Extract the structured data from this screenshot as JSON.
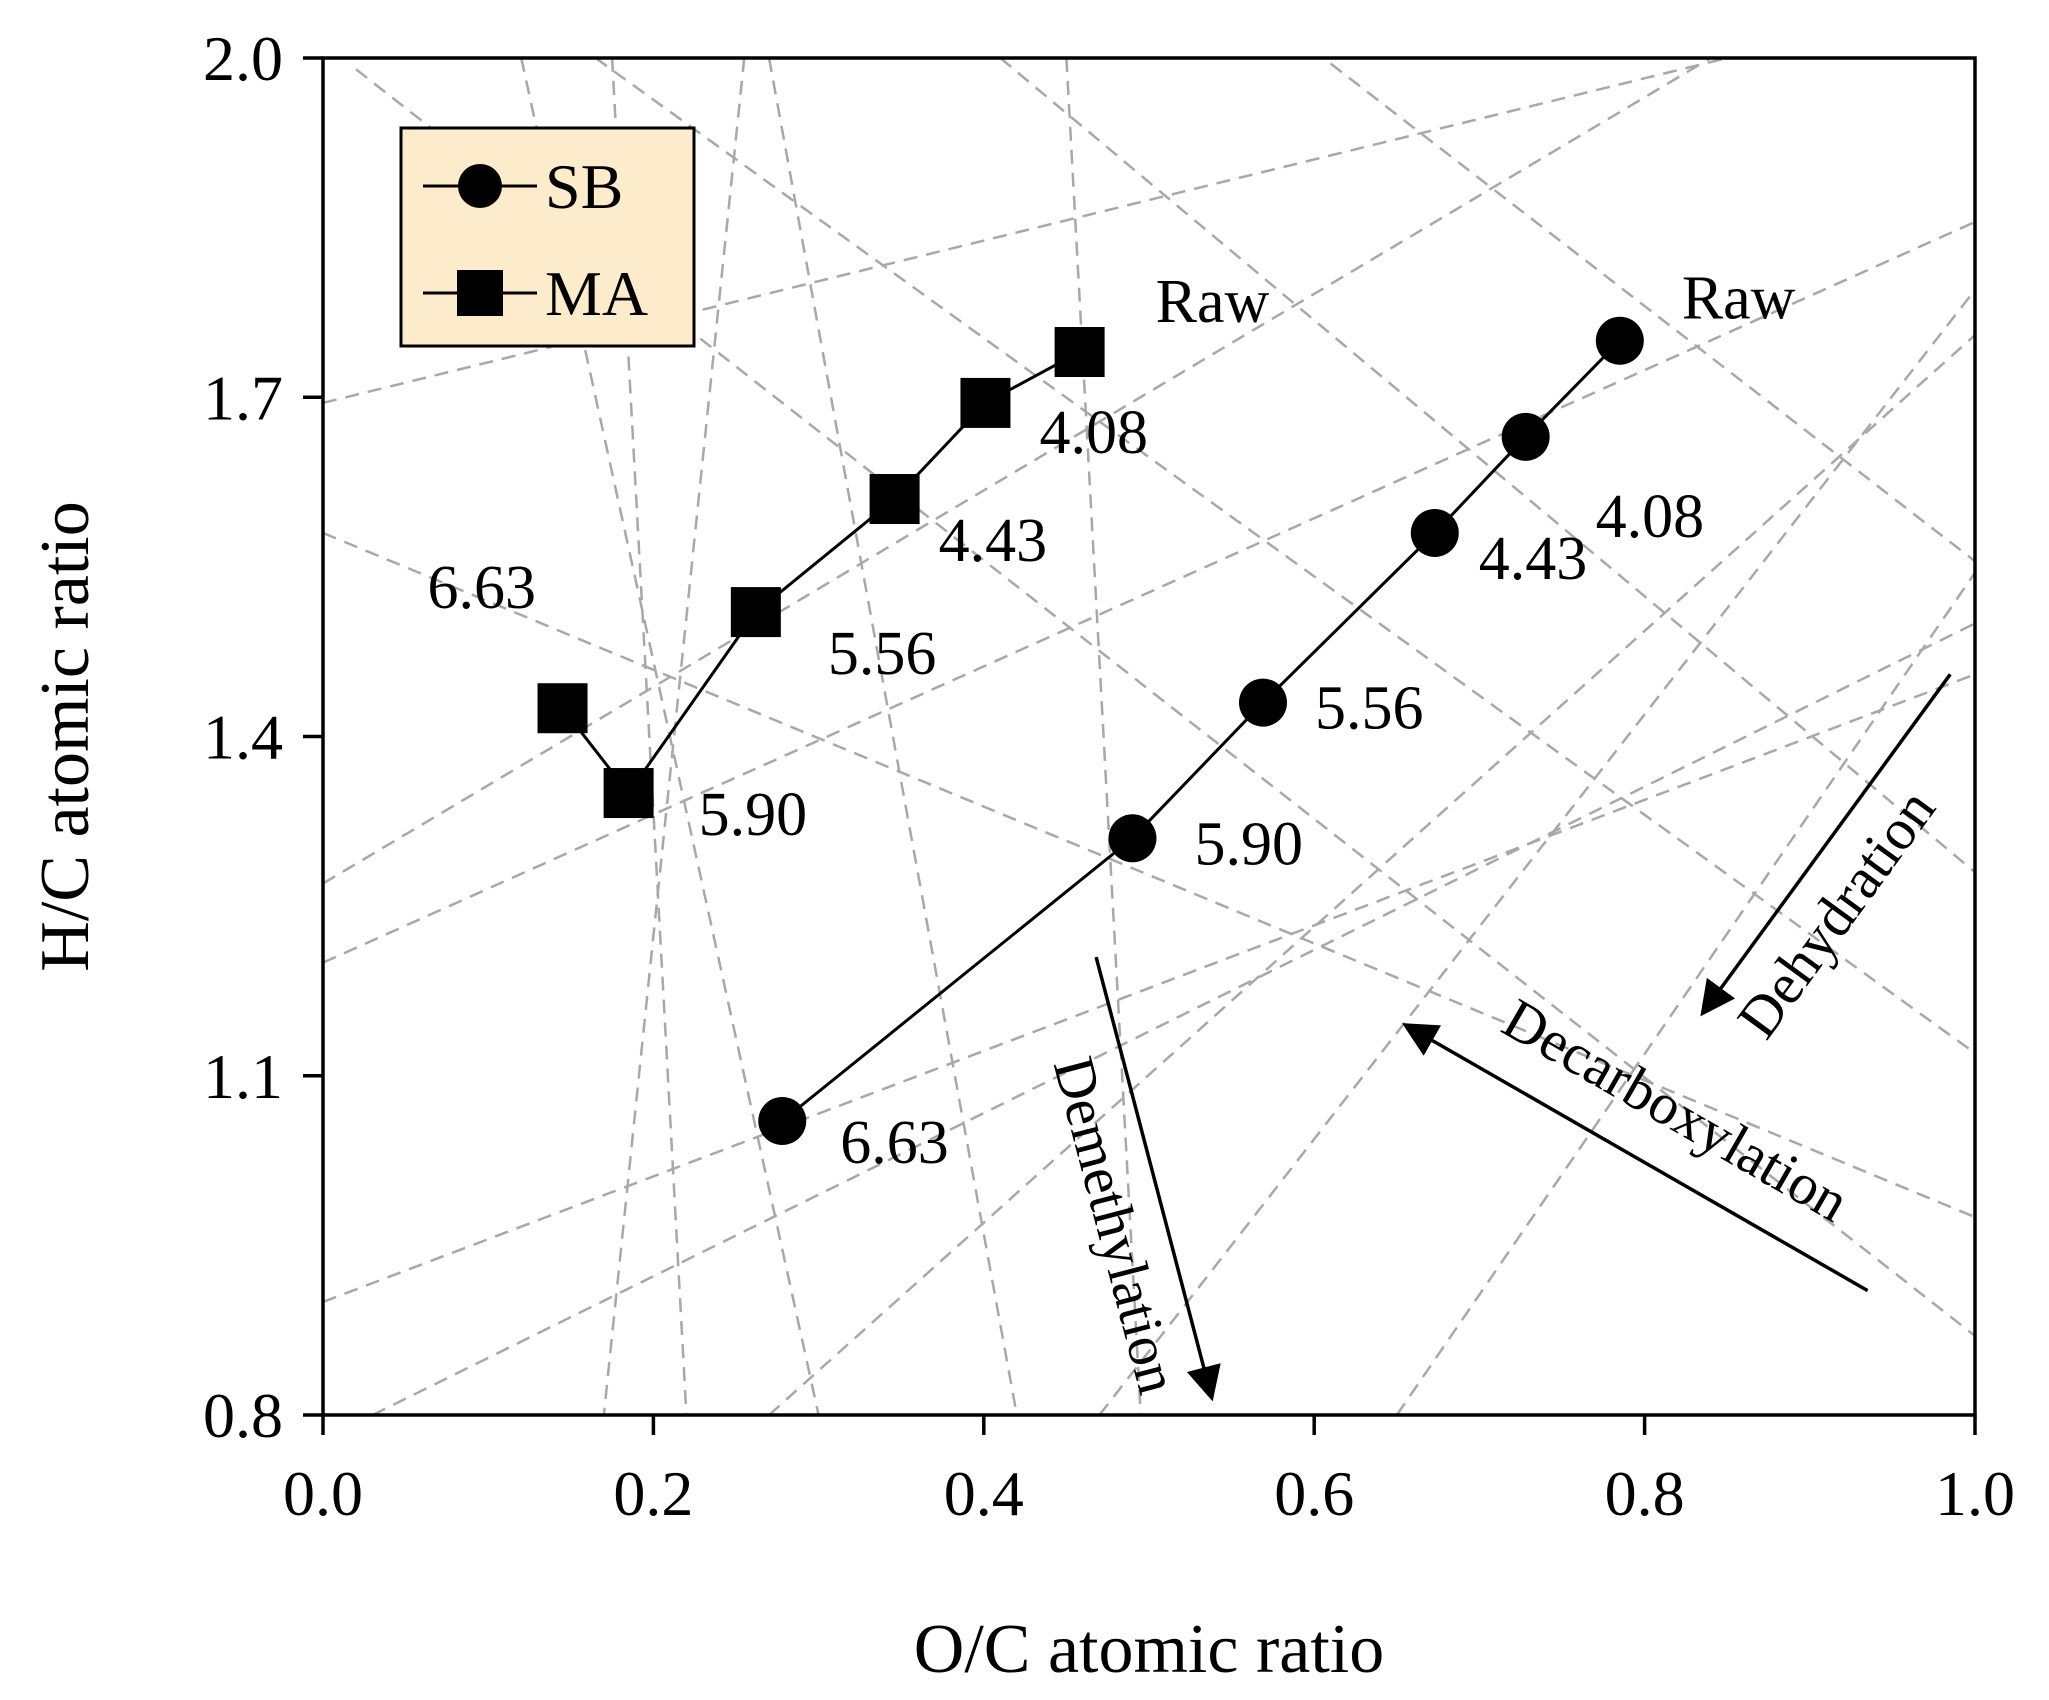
{
  "chart_data": {
    "type": "scatter",
    "xlabel": "O/C atomic ratio",
    "ylabel": "H/C atomic ratio",
    "xlim": [
      0.0,
      1.0
    ],
    "ylim": [
      0.8,
      2.0
    ],
    "xticks": [
      "0.0",
      "0.2",
      "0.4",
      "0.6",
      "0.8",
      "1.0"
    ],
    "yticks": [
      "0.8",
      "1.1",
      "1.4",
      "1.7",
      "2.0"
    ],
    "grid": "dashed reference lines",
    "legend_position": "top-left",
    "series": [
      {
        "name": "SB",
        "marker": "circle",
        "points": [
          {
            "x": 0.785,
            "y": 1.75,
            "label": "Raw"
          },
          {
            "x": 0.728,
            "y": 1.665,
            "label": "4.08"
          },
          {
            "x": 0.673,
            "y": 1.58,
            "label": "4.43"
          },
          {
            "x": 0.569,
            "y": 1.43,
            "label": "5.56"
          },
          {
            "x": 0.49,
            "y": 1.31,
            "label": "5.90"
          },
          {
            "x": 0.278,
            "y": 1.06,
            "label": "6.63"
          }
        ]
      },
      {
        "name": "MA",
        "marker": "square",
        "points": [
          {
            "x": 0.458,
            "y": 1.74,
            "label": "Raw"
          },
          {
            "x": 0.401,
            "y": 1.695,
            "label": "4.08"
          },
          {
            "x": 0.346,
            "y": 1.61,
            "label": "4.43"
          },
          {
            "x": 0.262,
            "y": 1.51,
            "label": "5.56"
          },
          {
            "x": 0.185,
            "y": 1.35,
            "label": "5.90"
          },
          {
            "x": 0.145,
            "y": 1.425,
            "label": "6.63"
          }
        ]
      }
    ],
    "process_arrows": [
      {
        "label": "Dehydration",
        "from": [
          0.985,
          1.455
        ],
        "to": [
          0.835,
          1.155
        ]
      },
      {
        "label": "Decarboxylation",
        "from": [
          0.935,
          0.91
        ],
        "to": [
          0.655,
          1.145
        ]
      },
      {
        "label": "Demethylation",
        "from": [
          0.468,
          1.205
        ],
        "to": [
          0.538,
          0.815
        ]
      }
    ],
    "reference_lines": [
      {
        "from": [
          0.0,
          1.695
        ],
        "to": [
          0.85,
          2.0
        ]
      },
      {
        "from": [
          0.0,
          1.2
        ],
        "to": [
          1.0,
          1.855
        ]
      },
      {
        "from": [
          0.0,
          0.9
        ],
        "to": [
          1.0,
          1.455
        ]
      },
      {
        "from": [
          0.165,
          2.0
        ],
        "to": [
          1.0,
          1.12
        ]
      },
      {
        "from": [
          0.02,
          1.99
        ],
        "to": [
          1.0,
          0.87
        ]
      },
      {
        "from": [
          0.0,
          1.58
        ],
        "to": [
          1.0,
          0.975
        ]
      },
      {
        "from": [
          0.41,
          2.0
        ],
        "to": [
          1.0,
          1.28
        ]
      },
      {
        "from": [
          0.61,
          1.995
        ],
        "to": [
          1.0,
          1.555
        ]
      },
      {
        "from": [
          0.0,
          1.27
        ],
        "to": [
          0.84,
          2.0
        ]
      },
      {
        "from": [
          0.03,
          0.8
        ],
        "to": [
          1.0,
          1.5
        ]
      },
      {
        "from": [
          0.27,
          0.8
        ],
        "to": [
          1.0,
          1.755
        ]
      },
      {
        "from": [
          0.47,
          0.8
        ],
        "to": [
          1.0,
          1.795
        ]
      },
      {
        "from": [
          0.65,
          0.8
        ],
        "to": [
          1.0,
          1.545
        ]
      },
      {
        "from": [
          0.12,
          2.0
        ],
        "to": [
          0.3,
          0.8
        ]
      },
      {
        "from": [
          0.27,
          2.0
        ],
        "to": [
          0.42,
          0.8
        ]
      },
      {
        "from": [
          0.45,
          2.0
        ],
        "to": [
          0.495,
          0.8
        ]
      },
      {
        "from": [
          0.175,
          2.0
        ],
        "to": [
          0.22,
          0.8
        ]
      },
      {
        "from": [
          0.255,
          2.0
        ],
        "to": [
          0.17,
          0.8
        ]
      }
    ],
    "legend": [
      {
        "name": "SB",
        "marker": "circle"
      },
      {
        "name": "MA",
        "marker": "square"
      }
    ]
  }
}
